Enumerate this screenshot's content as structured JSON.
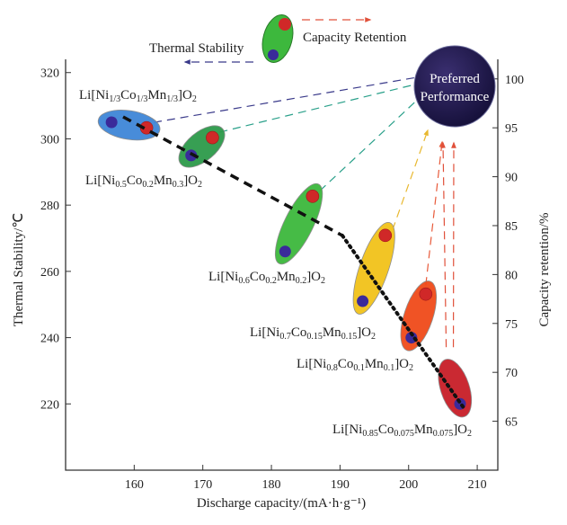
{
  "chart_data": {
    "type": "scatter",
    "xlabel": "Discharge capacity/(mA·h·g⁻¹)",
    "ylabel_left": "Thermal Stability/℃",
    "ylabel_right": "Capacity retention/%",
    "xlim": [
      150,
      213
    ],
    "ylim_left": [
      200,
      324
    ],
    "ylim_right": [
      60,
      102
    ],
    "x_ticks": [
      160,
      170,
      180,
      190,
      200,
      210
    ],
    "y_left_ticks": [
      220,
      240,
      260,
      280,
      300,
      320
    ],
    "y_right_ticks": [
      65,
      70,
      75,
      80,
      85,
      90,
      95,
      100
    ],
    "grid": false,
    "legend": {
      "thermal_label": "Thermal Stability",
      "capacity_label": "Capacity Retention",
      "placement": "top"
    },
    "target": {
      "line1": "Preferred",
      "line2": "Performance",
      "color": "#221a4a"
    },
    "thermal_color": "#3a2a9a",
    "capacity_color": "#d02828",
    "materials": [
      {
        "label": [
          "Li[Ni",
          "1/3",
          "Co",
          "1/3",
          "Mn",
          "1/3",
          "]O",
          "2"
        ],
        "x_thermal": 156.7,
        "thermal": 305,
        "x_capacity": 161.8,
        "capacity": 95,
        "color": "#3f86d8",
        "arrow": "#3a3a8a"
      },
      {
        "label": [
          "Li[Ni",
          "0.5",
          "Co",
          "0.2",
          "Mn",
          "0.3",
          "]O",
          "2"
        ],
        "x_thermal": 168.3,
        "thermal": 295,
        "x_capacity": 171.4,
        "capacity": 94,
        "color": "#2d9a4a",
        "arrow": "#2aa08a"
      },
      {
        "label": [
          "Li[Ni",
          "0.6",
          "Co",
          "0.2",
          "Mn",
          "0.2",
          "]O",
          "2"
        ],
        "x_thermal": 182,
        "thermal": 266,
        "x_capacity": 186,
        "capacity": 88,
        "color": "#3db83d",
        "arrow": "#2aa08a"
      },
      {
        "label": [
          "Li[Ni",
          "0.7",
          "Co",
          "0.15",
          "Mn",
          "0.15",
          "]O",
          "2"
        ],
        "x_thermal": 193.3,
        "thermal": 251,
        "x_capacity": 196.6,
        "capacity": 84,
        "color": "#f2c21a",
        "arrow": "#e8b830"
      },
      {
        "label": [
          "Li[Ni",
          "0.8",
          "Co",
          "0.1",
          "Mn",
          "0.1",
          "]O",
          "2"
        ],
        "x_thermal": 200.4,
        "thermal": 240,
        "x_capacity": 202.5,
        "capacity": 78,
        "color": "#f04a1a",
        "arrow": "#e85a3a"
      },
      {
        "label": [
          "Li[Ni",
          "0.85",
          "Co",
          "0.075",
          "Mn",
          "0.075",
          "]O",
          "2"
        ],
        "x_thermal": 207.5,
        "thermal": 220,
        "x_capacity": 206,
        "capacity": 70,
        "color": "#c81e28",
        "arrow": "#e0503a"
      }
    ]
  }
}
